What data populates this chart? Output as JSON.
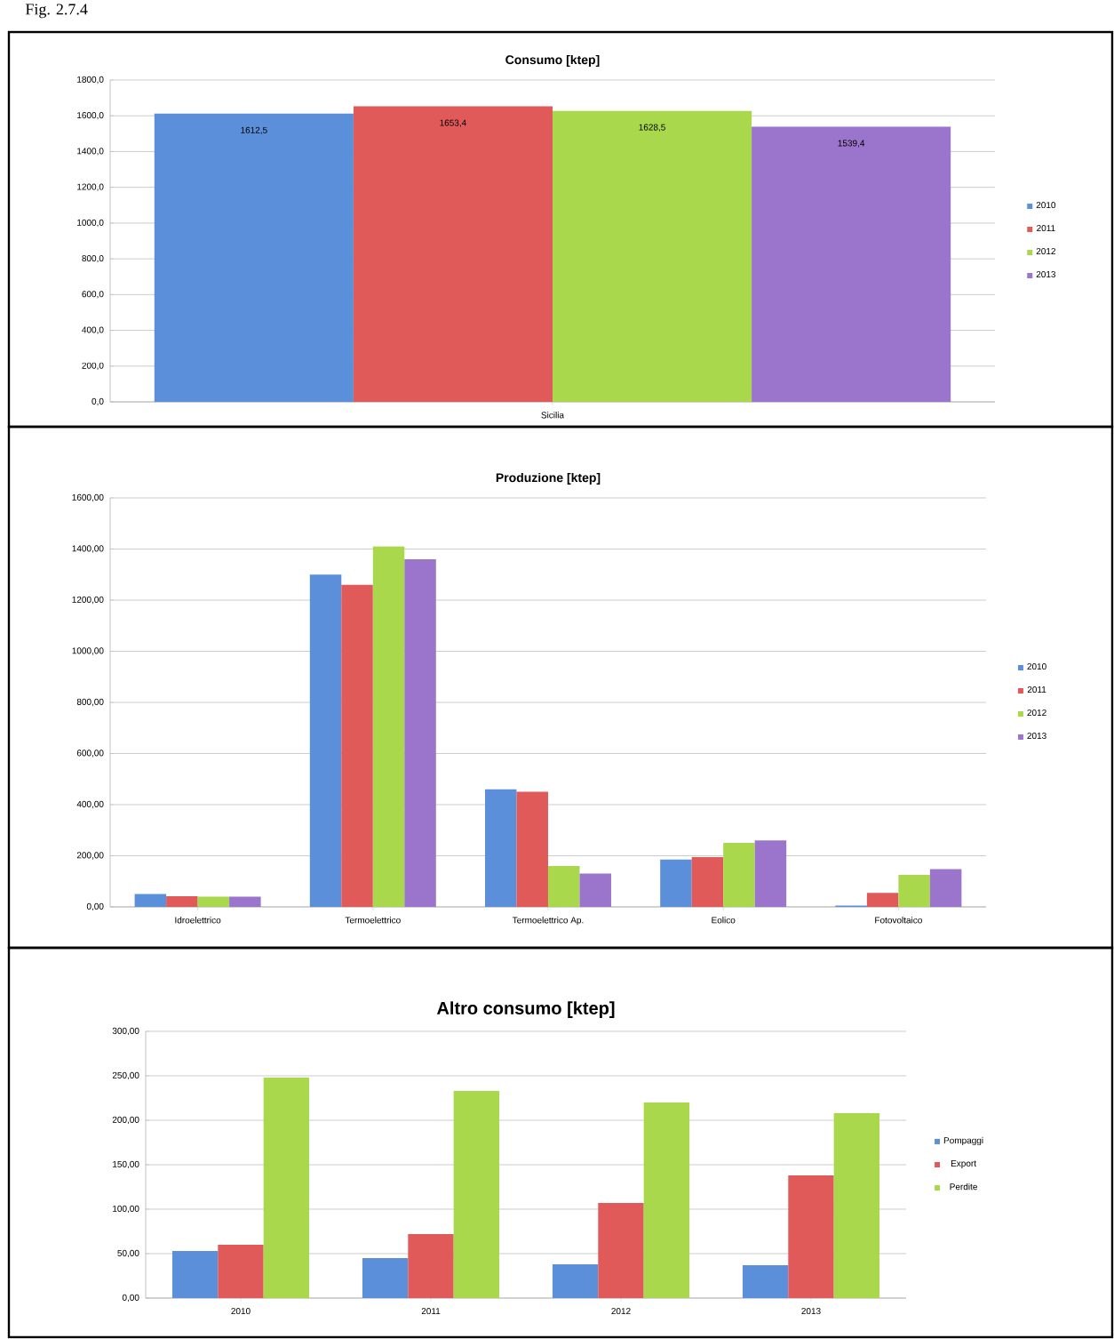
{
  "chart_data": [
    {
      "type": "bar",
      "title": "Consumo [ktep]",
      "annotations": [
        "Fig. 2.7.4"
      ],
      "categories": [
        "Sicilia"
      ],
      "series": [
        {
          "name": "2010",
          "color": "#5b8fd9",
          "values": [
            1612.5
          ],
          "value_labels": [
            "1612,5"
          ]
        },
        {
          "name": "2011",
          "color": "#e05a5a",
          "values": [
            1653.4
          ],
          "value_labels": [
            "1653,4"
          ]
        },
        {
          "name": "2012",
          "color": "#a9d84c",
          "values": [
            1628.5
          ],
          "value_labels": [
            "1628,5"
          ]
        },
        {
          "name": "2013",
          "color": "#9b74cc",
          "values": [
            1539.4
          ],
          "value_labels": [
            "1539,4"
          ]
        }
      ],
      "ylim": [
        0,
        1800
      ],
      "yticks": [
        {
          "value": 0,
          "label": "0,0"
        },
        {
          "value": 200,
          "label": "200,0"
        },
        {
          "value": 400,
          "label": "400,0"
        },
        {
          "value": 600,
          "label": "600,0"
        },
        {
          "value": 800,
          "label": "800,0"
        },
        {
          "value": 1000,
          "label": "1000,0"
        },
        {
          "value": 1200,
          "label": "1200,0"
        },
        {
          "value": 1400,
          "label": "1400,0"
        },
        {
          "value": 1600,
          "label": "1600,0"
        },
        {
          "value": 1800,
          "label": "1800,0"
        }
      ],
      "grid": "y",
      "legend": "right"
    },
    {
      "type": "bar",
      "title": "Produzione [ktep]",
      "categories": [
        "Idroelettrico",
        "Termoelettrico",
        "Termoelettrico Ap.",
        "Eolico",
        "Fotovoltaico"
      ],
      "series": [
        {
          "name": "2010",
          "color": "#5b8fd9",
          "values": [
            50,
            1300,
            460,
            185,
            5
          ]
        },
        {
          "name": "2011",
          "color": "#e05a5a",
          "values": [
            42,
            1260,
            450,
            195,
            55
          ]
        },
        {
          "name": "2012",
          "color": "#a9d84c",
          "values": [
            40,
            1410,
            160,
            250,
            125
          ]
        },
        {
          "name": "2013",
          "color": "#9b74cc",
          "values": [
            40,
            1360,
            130,
            260,
            148
          ]
        }
      ],
      "ylim": [
        0,
        1600
      ],
      "yticks": [
        {
          "value": 0,
          "label": "0,00"
        },
        {
          "value": 200,
          "label": "200,00"
        },
        {
          "value": 400,
          "label": "400,00"
        },
        {
          "value": 600,
          "label": "600,00"
        },
        {
          "value": 800,
          "label": "800,00"
        },
        {
          "value": 1000,
          "label": "1000,00"
        },
        {
          "value": 1200,
          "label": "1200,00"
        },
        {
          "value": 1400,
          "label": "1400,00"
        },
        {
          "value": 1600,
          "label": "1600,00"
        }
      ],
      "grid": "y",
      "legend": "right"
    },
    {
      "type": "bar",
      "title": "Altro consumo [ktep]",
      "categories": [
        "2010",
        "2011",
        "2012",
        "2013"
      ],
      "series": [
        {
          "name": "Pompaggi",
          "color": "#5b8fd9",
          "values": [
            53,
            45,
            38,
            37
          ]
        },
        {
          "name": "Export",
          "color": "#e05a5a",
          "values": [
            60,
            72,
            107,
            138
          ]
        },
        {
          "name": "Perdite",
          "color": "#a9d84c",
          "values": [
            248,
            233,
            220,
            208
          ]
        }
      ],
      "ylim": [
        0,
        300
      ],
      "yticks": [
        {
          "value": 0,
          "label": "0,00"
        },
        {
          "value": 50,
          "label": "50,00"
        },
        {
          "value": 100,
          "label": "100,00"
        },
        {
          "value": 150,
          "label": "150,00"
        },
        {
          "value": 200,
          "label": "200,00"
        },
        {
          "value": 250,
          "label": "250,00"
        },
        {
          "value": 300,
          "label": "300,00"
        }
      ],
      "grid": "y",
      "legend": "right"
    }
  ]
}
